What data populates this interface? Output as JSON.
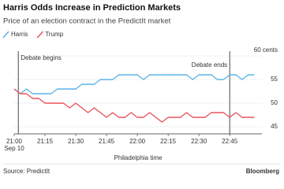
{
  "chart_data": {
    "type": "line",
    "title": "Harris Odds Increase in Prediction Markets",
    "subtitle": "Price of an election contract in the PredictIt market",
    "x": [
      "21:00",
      "21:03",
      "21:06",
      "21:09",
      "21:12",
      "21:15",
      "21:18",
      "21:21",
      "21:24",
      "21:27",
      "21:30",
      "21:33",
      "21:36",
      "21:39",
      "21:42",
      "21:45",
      "21:48",
      "21:51",
      "21:54",
      "21:57",
      "22:00",
      "22:03",
      "22:06",
      "22:09",
      "22:12",
      "22:15",
      "22:18",
      "22:21",
      "22:24",
      "22:27",
      "22:30",
      "22:33",
      "22:36",
      "22:39",
      "22:42",
      "22:45",
      "22:48",
      "22:51",
      "22:54",
      "22:57"
    ],
    "series": [
      {
        "name": "Harris",
        "color": "#5ab4e8",
        "values": [
          53,
          52,
          53,
          52,
          52,
          52,
          52,
          53,
          53,
          53,
          53,
          54,
          54,
          54,
          55,
          55,
          55,
          56,
          56,
          56,
          56,
          55,
          56,
          56,
          56,
          56,
          56,
          56,
          56,
          55,
          56,
          56,
          56,
          55,
          55,
          56,
          56,
          55,
          56,
          56
        ]
      },
      {
        "name": "Trump",
        "color": "#e8545a",
        "values": [
          53,
          52,
          52,
          51,
          51,
          50,
          50,
          50,
          50,
          49,
          50,
          49,
          48,
          49,
          48,
          47,
          48,
          47,
          47,
          48,
          47,
          47,
          48,
          47,
          46,
          47,
          47,
          47,
          48,
          47,
          47,
          47,
          48,
          48,
          48,
          47,
          48,
          47,
          47,
          47
        ]
      }
    ],
    "xlim": [
      "21:00",
      "22:58"
    ],
    "xticks": [
      "21:00",
      "21:15",
      "21:30",
      "21:45",
      "22:00",
      "22:15",
      "22:30",
      "22:45"
    ],
    "x_tick_sublabel": "Sep 10",
    "xlabel": "Philadelphia time",
    "ylim": [
      43.5,
      61
    ],
    "yticks": [
      {
        "value": 60,
        "label": "60 cents"
      },
      55,
      50,
      45
    ],
    "grid": true,
    "legend": "top-left",
    "annotations": [
      {
        "text": "Debate begins",
        "x": "21:02"
      },
      {
        "text": "Debate ends",
        "x": "22:45"
      }
    ],
    "source": "Source: PredictIt",
    "brand": "Bloomberg"
  }
}
